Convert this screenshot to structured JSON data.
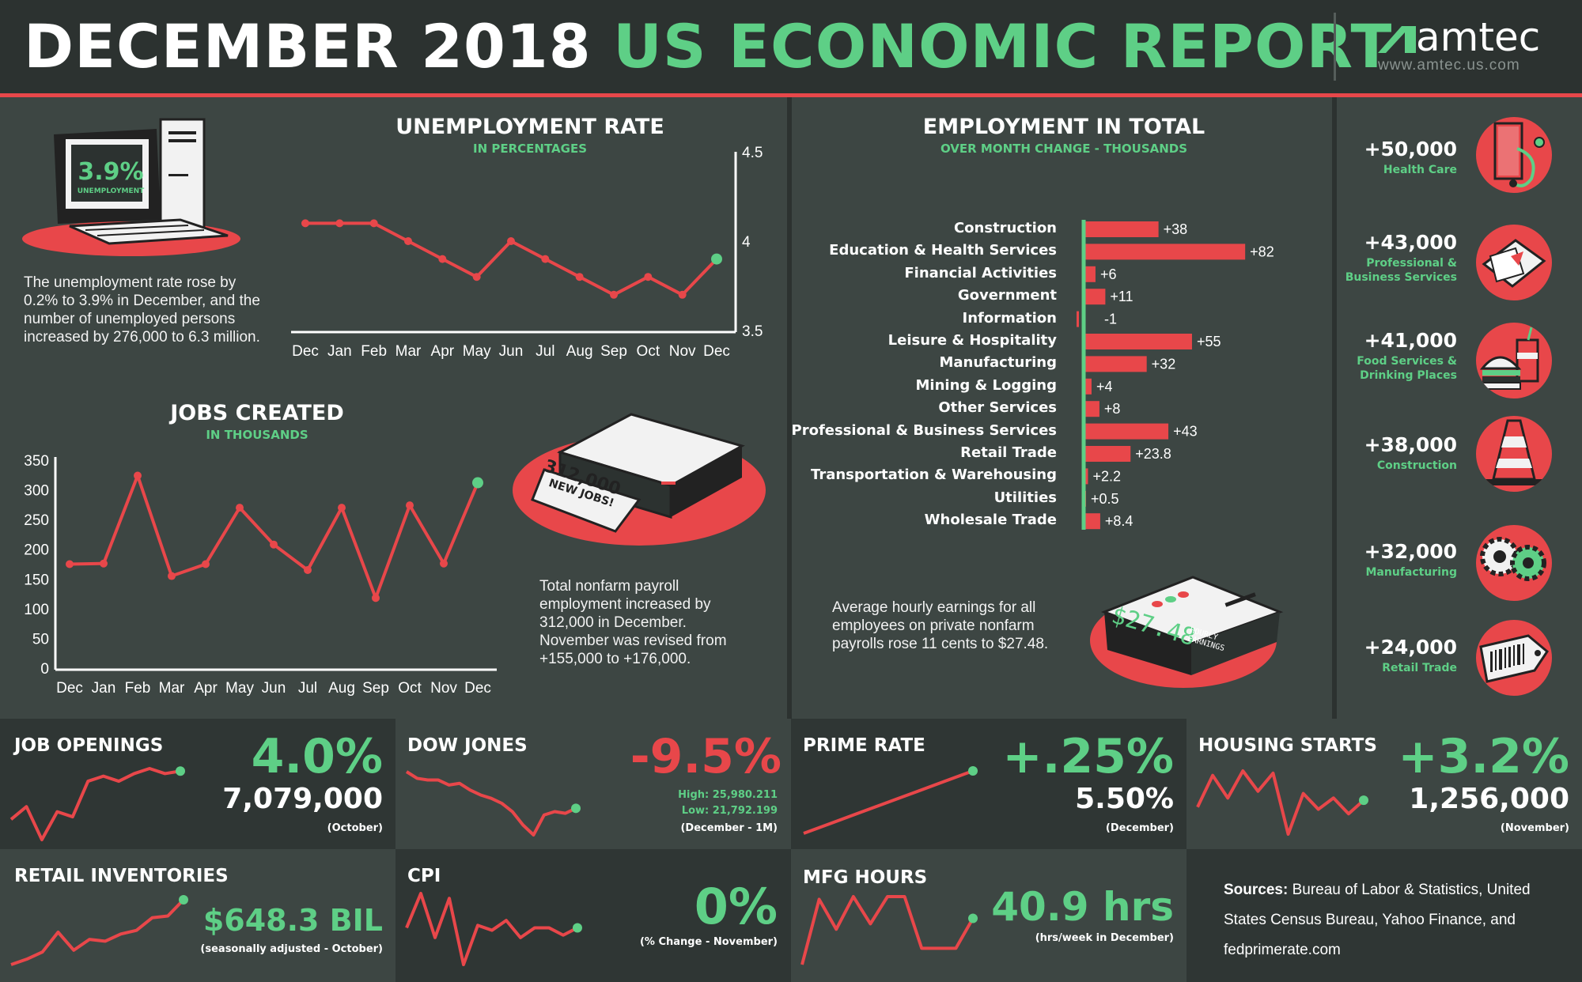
{
  "header": {
    "title_part1": "DECEMBER 2018",
    "title_part2": "US ECONOMIC REPORT",
    "logo_text": "amtec",
    "logo_url": "www.amtec.us.com"
  },
  "colors": {
    "red": "#e8474a",
    "green": "#5ecf86",
    "bg": "#3d4643",
    "dark": "#2c3230"
  },
  "unemployment": {
    "title": "UNEMPLOYMENT RATE",
    "subtitle": "IN PERCENTAGES",
    "badge_value": "3.9%",
    "badge_label": "UNEMPLOYMENT",
    "text": "The unemployment rate rose by 0.2% to 3.9% in December, and the number of unemployed persons increased by 276,000 to 6.3 million."
  },
  "jobs": {
    "title": "JOBS CREATED",
    "subtitle": "IN THOUSANDS",
    "printer_line1": "312,000",
    "printer_line2": "NEW JOBS!",
    "text": "Total nonfarm payroll employment increased by 312,000 in December. November was revised from +155,000 to +176,000."
  },
  "employment": {
    "title": "EMPLOYMENT IN TOTAL",
    "subtitle": "OVER MONTH CHANGE - THOUSANDS",
    "text": "Average hourly earnings for all employees on private nonfarm payrolls rose 11 cents to $27.48.",
    "clock_value": "$27.48",
    "clock_label1": "HOURLY",
    "clock_label2": "EARNINGS"
  },
  "sidebar": [
    {
      "value": "+50,000",
      "label": "Health Care",
      "icon": "medical-book-icon"
    },
    {
      "value": "+43,000",
      "label": "Professional & Business Services",
      "icon": "documents-icon"
    },
    {
      "value": "+41,000",
      "label": "Food Services & Drinking Places",
      "icon": "burger-drink-icon"
    },
    {
      "value": "+38,000",
      "label": "Construction",
      "icon": "traffic-cone-icon"
    },
    {
      "value": "+32,000",
      "label": "Manufacturing",
      "icon": "gears-icon"
    },
    {
      "value": "+24,000",
      "label": "Retail Trade",
      "icon": "price-tag-icon"
    }
  ],
  "tiles": {
    "job_openings": {
      "title": "JOB OPENINGS",
      "pct": "4.0%",
      "value": "7,079,000",
      "note": "(October)"
    },
    "dow_jones": {
      "title": "DOW JONES",
      "pct": "-9.5%",
      "high": "High: 25,980.211",
      "low": "Low: 21,792.199",
      "note": "(December - 1M)"
    },
    "prime_rate": {
      "title": "PRIME RATE",
      "pct": "+.25%",
      "value": "5.50%",
      "note": "(December)"
    },
    "housing": {
      "title": "HOUSING STARTS",
      "pct": "+3.2%",
      "value": "1,256,000",
      "note": "(November)"
    },
    "retail_inv": {
      "title": "RETAIL INVENTORIES",
      "value": "$648.3 BIL",
      "note": "(seasonally adjusted - October)"
    },
    "cpi": {
      "title": "CPI",
      "value": "0%",
      "note": "(% Change - November)"
    },
    "mfg": {
      "title": "MFG HOURS",
      "value": "40.9 hrs",
      "note": "(hrs/week in December)"
    },
    "sources_label": "Sources:",
    "sources_text": "Bureau of Labor & Statistics, United States Census Bureau, Yahoo Finance, and fedprimerate.com"
  },
  "chart_data": [
    {
      "type": "line",
      "title": "UNEMPLOYMENT RATE",
      "subtitle": "IN PERCENTAGES",
      "x": [
        "Dec",
        "Jan",
        "Feb",
        "Mar",
        "Apr",
        "May",
        "Jun",
        "Jul",
        "Aug",
        "Sep",
        "Oct",
        "Nov",
        "Dec"
      ],
      "values": [
        4.1,
        4.1,
        4.1,
        4.0,
        3.9,
        3.8,
        4.0,
        3.9,
        3.8,
        3.7,
        3.8,
        3.7,
        3.9
      ],
      "ylim": [
        3.5,
        4.5
      ],
      "yticks": [
        "4.5",
        "4",
        "3.5"
      ]
    },
    {
      "type": "line",
      "title": "JOBS CREATED",
      "subtitle": "IN THOUSANDS",
      "x": [
        "Dec",
        "Jan",
        "Feb",
        "Mar",
        "Apr",
        "May",
        "Jun",
        "Jul",
        "Aug",
        "Sep",
        "Oct",
        "Nov",
        "Dec"
      ],
      "values": [
        175,
        176,
        324,
        155,
        175,
        270,
        208,
        165,
        270,
        118,
        274,
        176,
        312
      ],
      "ylim": [
        0,
        350
      ],
      "yticks": [
        "350",
        "300",
        "250",
        "200",
        "150",
        "100",
        "50",
        "0"
      ]
    },
    {
      "type": "bar",
      "title": "EMPLOYMENT IN TOTAL",
      "subtitle": "OVER MONTH CHANGE - THOUSANDS",
      "categories": [
        "Construction",
        "Education & Health Services",
        "Financial Activities",
        "Government",
        "Information",
        "Leisure & Hospitality",
        "Manufacturing",
        "Mining & Logging",
        "Other Services",
        "Professional & Business Services",
        "Retail Trade",
        "Transportation & Warehousing",
        "Utilities",
        "Wholesale Trade"
      ],
      "values": [
        38,
        82,
        6,
        11,
        -1,
        55,
        32,
        4,
        8,
        43,
        23.8,
        2.2,
        0.5,
        8.4
      ],
      "labels": [
        "+38",
        "+82",
        "+6",
        "+11",
        "-1",
        "+55",
        "+32",
        "+4",
        "+8",
        "+43",
        "+23.8",
        "+2.2",
        "+0.5",
        "+8.4"
      ]
    },
    {
      "type": "line",
      "title": "JOB OPENINGS",
      "values": [
        3,
        3.5,
        2.2,
        3.3,
        3.1,
        4.5,
        4.7,
        4.5,
        4.8,
        5.0,
        4.8,
        4.9
      ]
    },
    {
      "type": "line",
      "title": "DOW JONES",
      "values": [
        5,
        4.6,
        4.5,
        4.5,
        4.2,
        4.3,
        3.9,
        3.6,
        3.4,
        3.1,
        2.6,
        1.8,
        1.2,
        2.4,
        2.6,
        2.5,
        2.8
      ]
    },
    {
      "type": "line",
      "title": "PRIME RATE",
      "values": [
        1,
        2,
        3,
        4,
        5,
        6,
        7
      ]
    },
    {
      "type": "line",
      "title": "HOUSING STARTS",
      "values": [
        3.2,
        4.6,
        3.6,
        4.8,
        3.9,
        4.7,
        2.0,
        3.8,
        3.1,
        3.6,
        2.9,
        3.5
      ]
    },
    {
      "type": "line",
      "title": "RETAIL INVENTORIES",
      "values": [
        1.0,
        1.3,
        1.7,
        2.8,
        1.8,
        2.4,
        2.3,
        2.7,
        2.9,
        3.6,
        3.7,
        4.6
      ]
    },
    {
      "type": "line",
      "title": "CPI",
      "values": [
        3.0,
        4.4,
        2.6,
        4.2,
        1.5,
        3.1,
        2.9,
        3.3,
        2.6,
        3.0,
        3.0,
        2.7,
        3.0
      ]
    },
    {
      "type": "line",
      "title": "MFG HOURS",
      "values": [
        1.5,
        3.9,
        2.8,
        4.0,
        3.0,
        4.0,
        4.0,
        2.1,
        2.1,
        2.1,
        3.2
      ]
    }
  ]
}
